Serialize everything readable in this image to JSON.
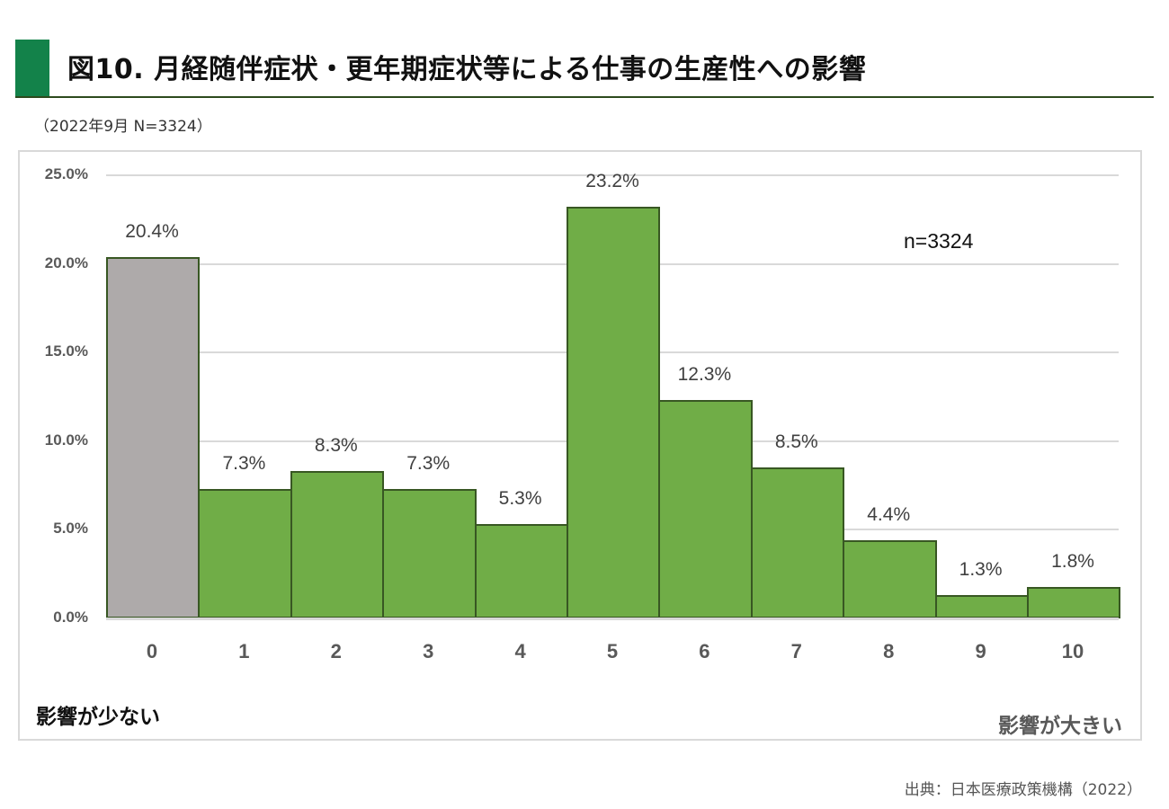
{
  "header": {
    "title": "図10. 月経随伴症状・更年期症状等による仕事の生産性への影響",
    "subtitle": "（2022年9月 N=3324）",
    "accent_color": "#13824a"
  },
  "chart": {
    "n_label": "n=3324",
    "low_label": "影響が少ない",
    "high_label": "影響が大きい",
    "y_ticks": [
      "25.0%",
      "20.0%",
      "15.0%",
      "10.0%",
      "5.0%",
      "0.0%"
    ],
    "bar_labels": [
      "20.4%",
      "7.3%",
      "8.3%",
      "7.3%",
      "5.3%",
      "23.2%",
      "12.3%",
      "8.5%",
      "4.4%",
      "1.3%",
      "1.8%"
    ],
    "x_labels": [
      "0",
      "1",
      "2",
      "3",
      "4",
      "5",
      "6",
      "7",
      "8",
      "9",
      "10"
    ],
    "colors": {
      "zero_bar": "#aeaaaa",
      "bars": "#70ad47",
      "bar_border": "#385723"
    }
  },
  "footer": {
    "source": "出典：日本医療政策機構（2022）"
  },
  "chart_data": {
    "type": "bar",
    "title": "図10. 月経随伴症状・更年期症状等による仕事の生産性への影響",
    "subtitle": "（2022年9月 N=3324）",
    "categories": [
      "0",
      "1",
      "2",
      "3",
      "4",
      "5",
      "6",
      "7",
      "8",
      "9",
      "10"
    ],
    "values": [
      20.4,
      7.3,
      8.3,
      7.3,
      5.3,
      23.2,
      12.3,
      8.5,
      4.4,
      1.3,
      1.8
    ],
    "value_format": "percent",
    "xlabel": "",
    "x_annotations": {
      "left": "影響が少ない",
      "right": "影響が大きい"
    },
    "ylabel": "",
    "ylim": [
      0,
      25
    ],
    "y_ticks": [
      0,
      5,
      10,
      15,
      20,
      25
    ],
    "grid": true,
    "annotations": [
      "n=3324"
    ],
    "bar_colors": [
      "#aeaaaa",
      "#70ad47",
      "#70ad47",
      "#70ad47",
      "#70ad47",
      "#70ad47",
      "#70ad47",
      "#70ad47",
      "#70ad47",
      "#70ad47",
      "#70ad47"
    ],
    "source": "出典：日本医療政策機構（2022）"
  }
}
